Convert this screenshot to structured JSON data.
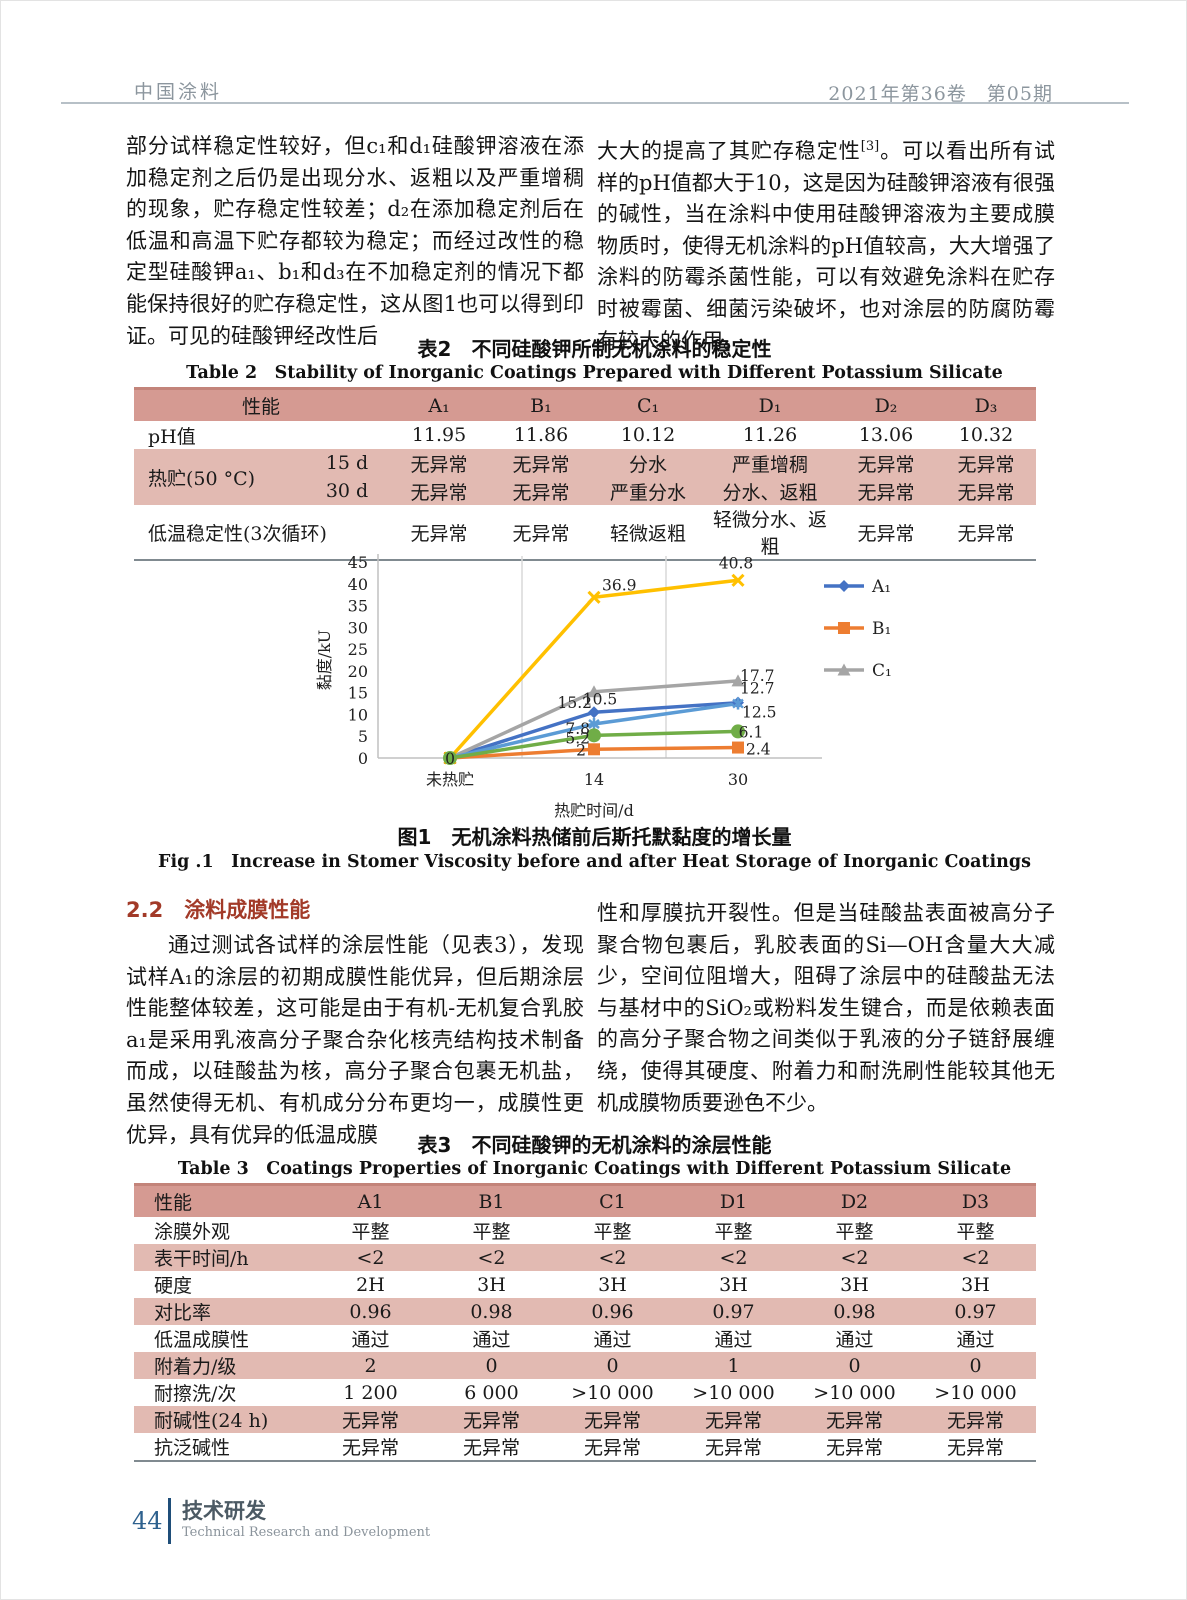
{
  "header": {
    "journal": "中国涂料",
    "issue": "2021年第36卷　第05期"
  },
  "para1": {
    "left": "部分试样稳定性较好，但c₁和d₁硅酸钾溶液在添加稳定剂之后仍是出现分水、返粗以及严重增稠的现象，贮存稳定性较差；d₂在添加稳定剂后在低温和高温下贮存都较为稳定；而经过改性的稳定型硅酸钾a₁、b₁和d₃在不加稳定剂的情况下都能保持很好的贮存稳定性，这从图1也可以得到印证。可见的硅酸钾经改性后",
    "right_pre": "大大的提高了其贮存稳定性",
    "right_sup": "[3]",
    "right_post": "。可以看出所有试样的pH值都大于10，这是因为硅酸钾溶液有很强的碱性，当在涂料中使用硅酸钾溶液为主要成膜物质时，使得无机涂料的pH值较高，大大增强了涂料的防霉杀菌性能，可以有效避免涂料在贮存时被霉菌、细菌污染破坏，也对涂层的防腐防霉有较大的作用。"
  },
  "table2": {
    "title_zh": "表2　不同硅酸钾所制无机涂料的稳定性",
    "title_en": "Table 2　Stability of Inorganic Coatings Prepared with Different Potassium Silicate",
    "headers": [
      "性能",
      "A₁",
      "B₁",
      "C₁",
      "D₁",
      "D₂",
      "D₃"
    ],
    "rows": [
      {
        "label": "pH值",
        "sub": "",
        "pink": false,
        "cells": [
          "11.95",
          "11.86",
          "10.12",
          "11.26",
          "13.06",
          "10.32"
        ]
      },
      {
        "label": "热贮(50 °C)",
        "sub": "15 d",
        "pink": true,
        "rowspan": 2,
        "cells": [
          "无异常",
          "无异常",
          "分水",
          "严重增稠",
          "无异常",
          "无异常"
        ]
      },
      {
        "label": "",
        "sub": "30 d",
        "pink": true,
        "cells": [
          "无异常",
          "无异常",
          "严重分水",
          "分水、返粗",
          "无异常",
          "无异常"
        ]
      },
      {
        "label": "低温稳定性(3次循环)",
        "sub": "",
        "pink": false,
        "cells": [
          "无异常",
          "无异常",
          "轻微返粗",
          "轻微分水、返粗",
          "无异常",
          "无异常"
        ]
      }
    ]
  },
  "chart_data": {
    "type": "line",
    "title": "",
    "x": [
      "未热贮",
      "14",
      "30"
    ],
    "xlabel": "热贮时间/d",
    "ylabel": "黏度/kU",
    "ylim": [
      0,
      45
    ],
    "ytick_step": 5,
    "grid": "vertical-category-boundaries",
    "legend_position": "right",
    "origin_label": "0",
    "series": [
      {
        "name": "A₁",
        "color": "#4472C4",
        "marker": "diamond",
        "values": [
          0,
          10.5,
          12.7
        ],
        "labels": [
          "",
          "10.5",
          "12.7"
        ]
      },
      {
        "name": "B₁",
        "color": "#ED7D31",
        "marker": "square",
        "values": [
          0,
          2,
          2.4
        ],
        "labels": [
          "",
          "2",
          "2.4"
        ]
      },
      {
        "name": "C₁",
        "color": "#A5A5A5",
        "marker": "triangle",
        "values": [
          0,
          15.2,
          17.7
        ],
        "labels": [
          "",
          "15.2",
          "17.7"
        ]
      },
      {
        "name": "",
        "color": "#FFC000",
        "marker": "x",
        "values": [
          0,
          36.9,
          40.8
        ],
        "labels": [
          "",
          "36.9",
          "40.8"
        ]
      },
      {
        "name": "",
        "color": "#5B9BD5",
        "marker": "asterisk",
        "values": [
          0,
          7.8,
          12.5
        ],
        "labels": [
          "",
          "7.8",
          "12.5"
        ]
      },
      {
        "name": "",
        "color": "#70AD47",
        "marker": "circle",
        "values": [
          0,
          5.2,
          6.1
        ],
        "labels": [
          "",
          "5.2",
          "6.1"
        ]
      }
    ],
    "legend": [
      {
        "label": "A₁",
        "series_index": 0
      },
      {
        "label": "B₁",
        "series_index": 1
      },
      {
        "label": "C₁",
        "series_index": 2
      }
    ]
  },
  "fig1": {
    "caption_zh": "图1　无机涂料热储前后斯托默黏度的增长量",
    "caption_en": "Fig .1　Increase in Stomer Viscosity before and after Heat Storage of Inorganic Coatings"
  },
  "section22": {
    "heading": "2.2　涂料成膜性能",
    "left": "通过测试各试样的涂层性能（见表3），发现试样A₁的涂层的初期成膜性能优异，但后期涂层性能整体较差，这可能是由于有机-无机复合乳胶a₁是采用乳液高分子聚合杂化核壳结构技术制备而成，以硅酸盐为核，高分子聚合包裹无机盐，虽然使得无机、有机成分分布更均一，成膜性更优异，具有优异的低温成膜",
    "right": "性和厚膜抗开裂性。但是当硅酸盐表面被高分子聚合物包裹后，乳胶表面的Si—OH含量大大减少，空间位阻增大，阻碍了涂层中的硅酸盐无法与基材中的SiO₂或粉料发生键合，而是依赖表面的高分子聚合物之间类似于乳液的分子链舒展缠绕，使得其硬度、附着力和耐洗刷性能较其他无机成膜物质要逊色不少。"
  },
  "table3": {
    "title_zh": "表3　不同硅酸钾的无机涂料的涂层性能",
    "title_en": "Table 3　Coatings Properties of Inorganic Coatings with Different Potassium Silicate",
    "headers": [
      "性能",
      "A1",
      "B1",
      "C1",
      "D1",
      "D2",
      "D3"
    ],
    "rows": [
      {
        "label": "涂膜外观",
        "cells": [
          "平整",
          "平整",
          "平整",
          "平整",
          "平整",
          "平整"
        ]
      },
      {
        "label": "表干时间/h",
        "cells": [
          "<2",
          "<2",
          "<2",
          "<2",
          "<2",
          "<2"
        ]
      },
      {
        "label": "硬度",
        "cells": [
          "2H",
          "3H",
          "3H",
          "3H",
          "3H",
          "3H"
        ]
      },
      {
        "label": "对比率",
        "cells": [
          "0.96",
          "0.98",
          "0.96",
          "0.97",
          "0.98",
          "0.97"
        ]
      },
      {
        "label": "低温成膜性",
        "cells": [
          "通过",
          "通过",
          "通过",
          "通过",
          "通过",
          "通过"
        ]
      },
      {
        "label": "附着力/级",
        "cells": [
          "2",
          "0",
          "0",
          "1",
          "0",
          "0"
        ]
      },
      {
        "label": "耐擦洗/次",
        "cells": [
          "1 200",
          "6 000",
          ">10 000",
          ">10 000",
          ">10 000",
          ">10 000"
        ]
      },
      {
        "label": "耐碱性(24 h)",
        "cells": [
          "无异常",
          "无异常",
          "无异常",
          "无异常",
          "无异常",
          "无异常"
        ]
      },
      {
        "label": "抗泛碱性",
        "cells": [
          "无异常",
          "无异常",
          "无异常",
          "无异常",
          "无异常",
          "无异常"
        ]
      }
    ]
  },
  "footer": {
    "page_number": "44",
    "section_zh": "技术研发",
    "section_en": "Technical Research and Development"
  },
  "colors": {
    "table_header_pink": "#d59a92",
    "table_stripe_pink": "#e2bab2",
    "heading_red": "#a23a28",
    "footer_blue": "#2e618e",
    "header_gray": "#8c969e"
  }
}
